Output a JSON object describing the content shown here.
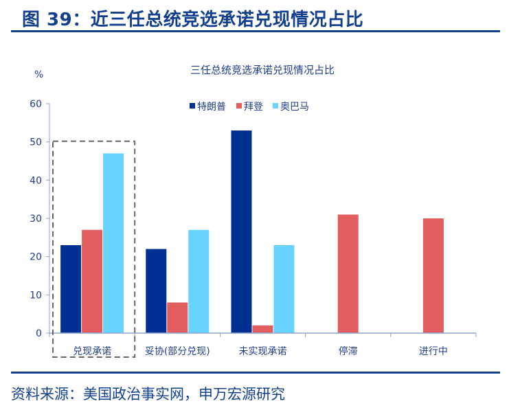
{
  "header": {
    "figure_title": "图 39：近三任总统竞选承诺兑现情况占比"
  },
  "footer": {
    "source": "资料来源：美国政治事实网，申万宏源研究"
  },
  "colors": {
    "brand": "#123f8c",
    "trump": "#003092",
    "biden": "#e25e5e",
    "obama": "#66d4ff"
  },
  "chart_data": {
    "type": "bar",
    "title": "三任总统竞选承诺兑现情况占比",
    "ylabel": "%",
    "xlabel": "",
    "ylim": [
      0,
      60
    ],
    "yticks": [
      0,
      10,
      20,
      30,
      40,
      50,
      60
    ],
    "legend_position": "top-center",
    "highlighted_category": "兑现承诺",
    "categories": [
      "兑现承诺",
      "妥协(部分兑现)",
      "未实现承诺",
      "停滞",
      "进行中"
    ],
    "series": [
      {
        "name": "特朗普",
        "color": "#003092",
        "values": [
          23,
          22,
          53,
          0,
          0
        ]
      },
      {
        "name": "拜登",
        "color": "#e25e5e",
        "values": [
          27,
          8,
          2,
          31,
          30
        ]
      },
      {
        "name": "奥巴马",
        "color": "#66d4ff",
        "values": [
          47,
          27,
          23,
          0,
          0
        ]
      }
    ]
  }
}
